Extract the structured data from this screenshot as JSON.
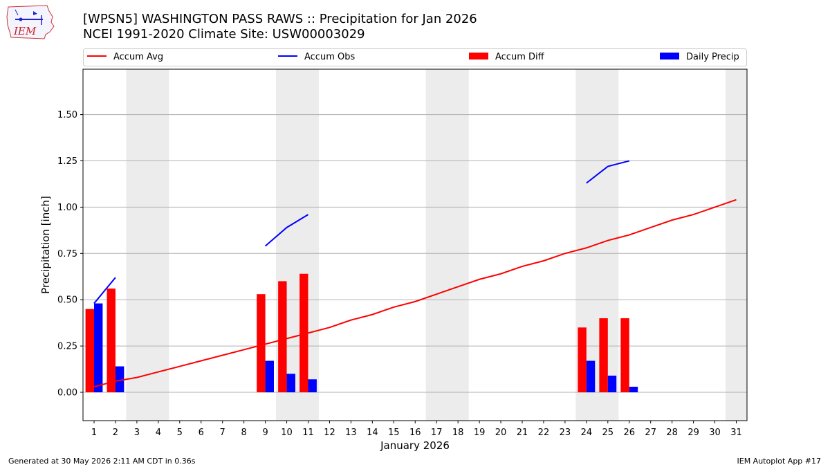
{
  "header": {
    "title_line1": "[WPSN5] WASHINGTON PASS RAWS :: Precipitation for Jan 2026",
    "title_line2": "NCEI 1991-2020 Climate Site: USW00003029"
  },
  "logo": {
    "text": "IEM",
    "icon": "iem-iowa-logo"
  },
  "footer": {
    "generated": "Generated at 30 May 2026 2:11 AM CDT in 0.36s",
    "app": "IEM Autoplot App #17"
  },
  "colors": {
    "accum_avg": "#ff0000",
    "accum_obs": "#0000ff",
    "accum_diff": "#ff0000",
    "daily_precip": "#0000ff",
    "weekend_shade": "#ececec",
    "grid": "#b0b0b0"
  },
  "chart_data": {
    "type": "bar",
    "xlabel": "January 2026",
    "ylabel": "Precipitation [inch]",
    "ylim": [
      -0.15,
      1.8
    ],
    "yticks": [
      "0.00",
      "0.25",
      "0.50",
      "0.75",
      "1.00",
      "1.25",
      "1.50"
    ],
    "ytick_values": [
      0,
      0.25,
      0.5,
      0.75,
      1.0,
      1.25,
      1.5
    ],
    "grid": "horizontal",
    "legend_position": "top",
    "legend": [
      "Accum Avg",
      "Accum Obs",
      "Accum Diff",
      "Daily Precip"
    ],
    "days": [
      1,
      2,
      3,
      4,
      5,
      6,
      7,
      8,
      9,
      10,
      11,
      12,
      13,
      14,
      15,
      16,
      17,
      18,
      19,
      20,
      21,
      22,
      23,
      24,
      25,
      26,
      27,
      28,
      29,
      30,
      31
    ],
    "weekend_days": [
      3,
      4,
      10,
      11,
      17,
      18,
      24,
      25,
      31
    ],
    "accum_avg": [
      0.03,
      0.06,
      0.08,
      0.11,
      0.14,
      0.17,
      0.2,
      0.23,
      0.26,
      0.29,
      0.32,
      0.35,
      0.39,
      0.42,
      0.46,
      0.49,
      0.53,
      0.57,
      0.61,
      0.64,
      0.68,
      0.71,
      0.75,
      0.78,
      0.82,
      0.85,
      0.89,
      0.93,
      0.96,
      1.0,
      1.04
    ],
    "accum_obs_segments": [
      {
        "days": [
          1,
          2
        ],
        "values": [
          0.48,
          0.62
        ]
      },
      {
        "days": [
          9,
          10,
          11
        ],
        "values": [
          0.79,
          0.89,
          0.96
        ]
      },
      {
        "days": [
          24,
          25,
          26
        ],
        "values": [
          1.13,
          1.22,
          1.25
        ]
      }
    ],
    "accum_diff": [
      {
        "day": 1,
        "value": 0.45
      },
      {
        "day": 2,
        "value": 0.56
      },
      {
        "day": 9,
        "value": 0.53
      },
      {
        "day": 10,
        "value": 0.6
      },
      {
        "day": 11,
        "value": 0.64
      },
      {
        "day": 24,
        "value": 0.35
      },
      {
        "day": 25,
        "value": 0.4
      },
      {
        "day": 26,
        "value": 0.4
      }
    ],
    "daily_precip": [
      {
        "day": 1,
        "value": 0.48
      },
      {
        "day": 2,
        "value": 0.14
      },
      {
        "day": 9,
        "value": 0.17
      },
      {
        "day": 10,
        "value": 0.1
      },
      {
        "day": 11,
        "value": 0.07
      },
      {
        "day": 24,
        "value": 0.17
      },
      {
        "day": 25,
        "value": 0.09
      },
      {
        "day": 26,
        "value": 0.03
      }
    ]
  }
}
